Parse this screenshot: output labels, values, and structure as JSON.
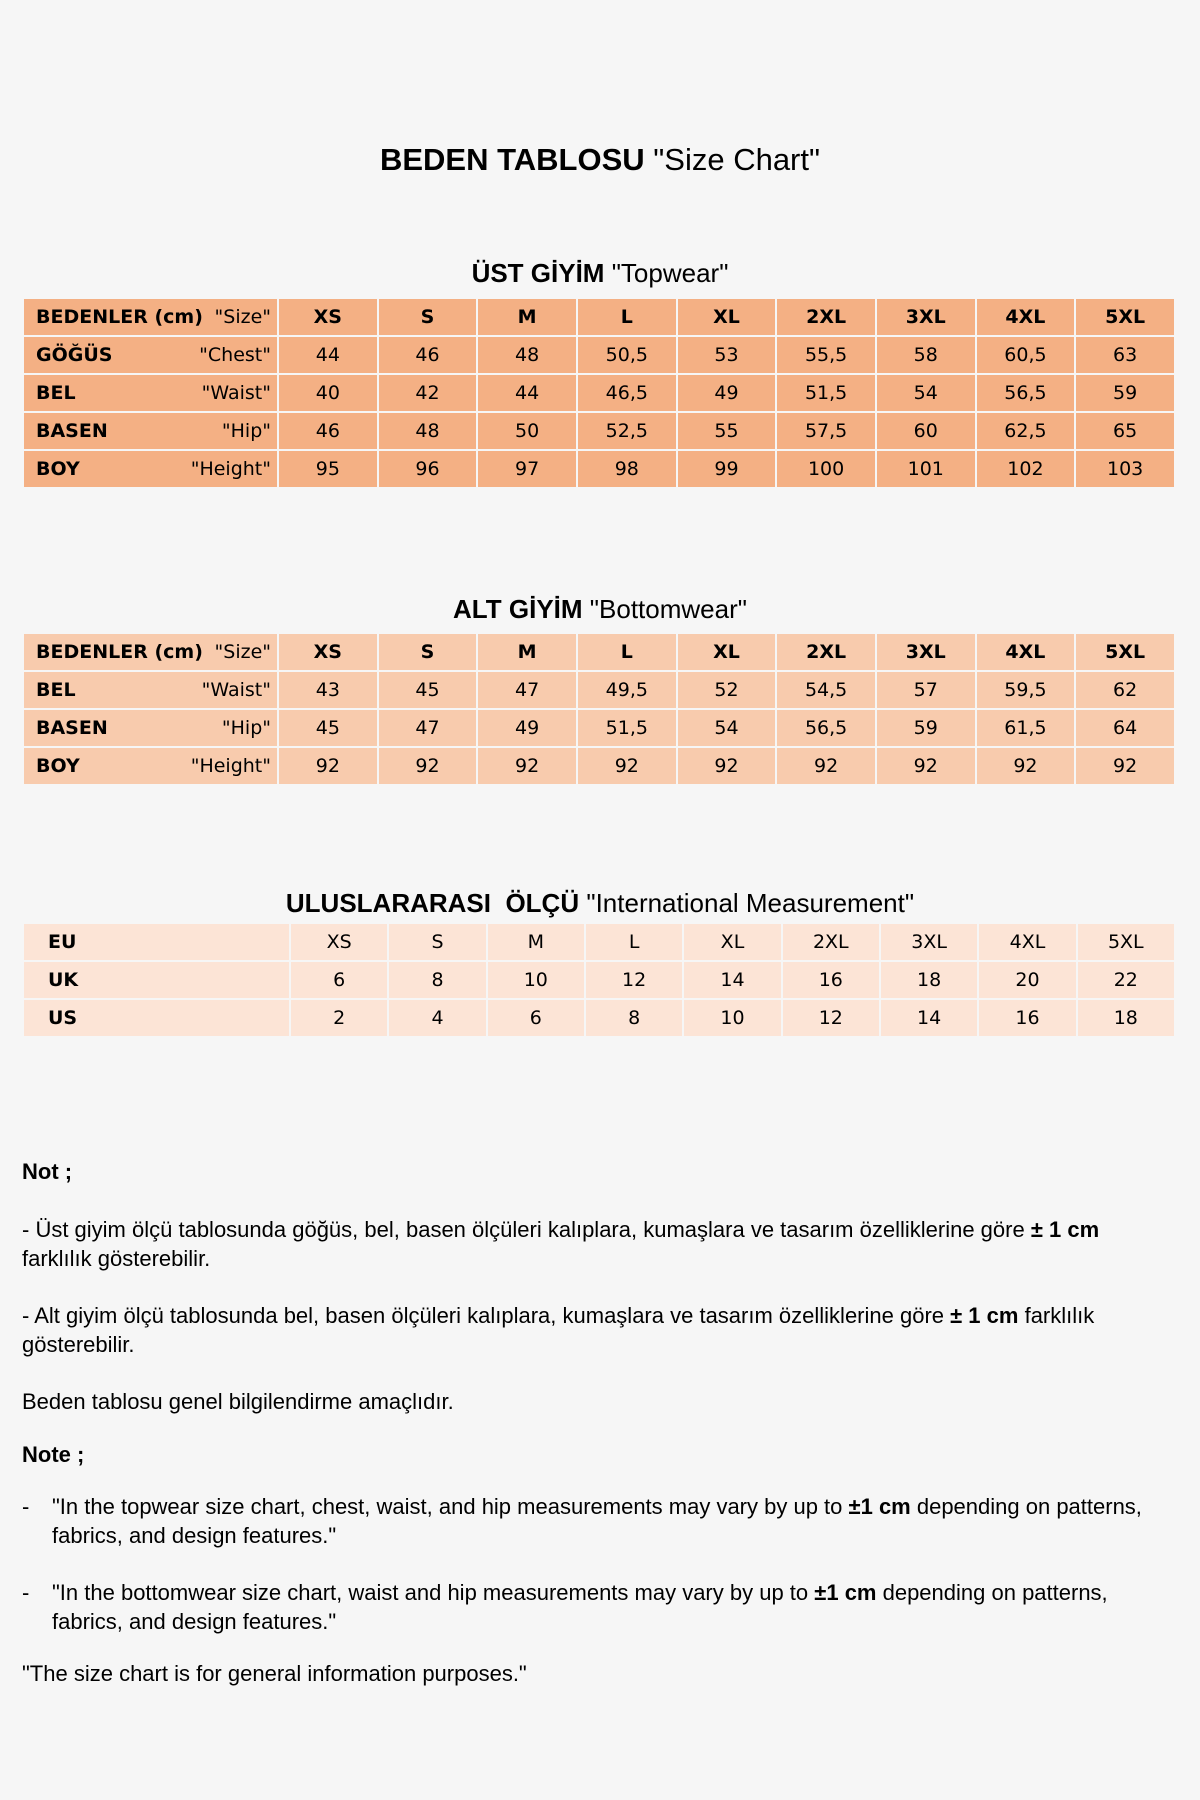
{
  "title": {
    "tr": "BEDEN TABLOSU",
    "en": "\"Size Chart\""
  },
  "topwear": {
    "heading_tr": "ÜST GİYİM",
    "heading_en": "\"Topwear\"",
    "header": {
      "label_tr": "BEDENLER (cm)",
      "label_en": "\"Size\"",
      "sizes": [
        "XS",
        "S",
        "M",
        "L",
        "XL",
        "2XL",
        "3XL",
        "4XL",
        "5XL"
      ]
    },
    "rows": [
      {
        "label_tr": "GÖĞÜS",
        "label_en": "\"Chest\"",
        "values": [
          "44",
          "46",
          "48",
          "50,5",
          "53",
          "55,5",
          "58",
          "60,5",
          "63"
        ]
      },
      {
        "label_tr": "BEL",
        "label_en": "\"Waist\"",
        "values": [
          "40",
          "42",
          "44",
          "46,5",
          "49",
          "51,5",
          "54",
          "56,5",
          "59"
        ]
      },
      {
        "label_tr": "BASEN",
        "label_en": "\"Hip\"",
        "values": [
          "46",
          "48",
          "50",
          "52,5",
          "55",
          "57,5",
          "60",
          "62,5",
          "65"
        ]
      },
      {
        "label_tr": "BOY",
        "label_en": "\"Height\"",
        "values": [
          "95",
          "96",
          "97",
          "98",
          "99",
          "100",
          "101",
          "102",
          "103"
        ]
      }
    ],
    "color": "#f4b084"
  },
  "bottomwear": {
    "heading_tr": "ALT GİYİM",
    "heading_en": "\"Bottomwear\"",
    "header": {
      "label_tr": "BEDENLER (cm)",
      "label_en": "\"Size\"",
      "sizes": [
        "XS",
        "S",
        "M",
        "L",
        "XL",
        "2XL",
        "3XL",
        "4XL",
        "5XL"
      ]
    },
    "rows": [
      {
        "label_tr": "BEL",
        "label_en": "\"Waist\"",
        "values": [
          "43",
          "45",
          "47",
          "49,5",
          "52",
          "54,5",
          "57",
          "59,5",
          "62"
        ]
      },
      {
        "label_tr": "BASEN",
        "label_en": "\"Hip\"",
        "values": [
          "45",
          "47",
          "49",
          "51,5",
          "54",
          "56,5",
          "59",
          "61,5",
          "64"
        ]
      },
      {
        "label_tr": "BOY",
        "label_en": "\"Height\"",
        "values": [
          "92",
          "92",
          "92",
          "92",
          "92",
          "92",
          "92",
          "92",
          "92"
        ]
      }
    ],
    "color": "#f8cbad"
  },
  "international": {
    "heading_tr": "ULUSLARARASI  ÖLÇÜ",
    "heading_en": "\"International Measurement\"",
    "rows": [
      {
        "label": "EU",
        "values": [
          "XS",
          "S",
          "M",
          "L",
          "XL",
          "2XL",
          "3XL",
          "4XL",
          "5XL"
        ]
      },
      {
        "label": "UK",
        "values": [
          "6",
          "8",
          "10",
          "12",
          "14",
          "16",
          "18",
          "20",
          "22"
        ]
      },
      {
        "label": "US",
        "values": [
          "2",
          "4",
          "6",
          "8",
          "10",
          "12",
          "14",
          "16",
          "18"
        ]
      }
    ],
    "color": "#fce4d6"
  },
  "notes": {
    "not_label": "Not ;",
    "tr1_a": "- Üst giyim ölçü tablosunda göğüs, bel, basen ölçüleri kalıplara, kumaşlara ve tasarım özelliklerine göre ",
    "tr1_b": "± 1 cm",
    "tr1_c": " farklılık gösterebilir.",
    "tr2_a": "- Alt giyim ölçü tablosunda bel, basen ölçüleri kalıplara, kumaşlara ve tasarım özelliklerine göre ",
    "tr2_b": "± 1 cm",
    "tr2_c": " farklılık gösterebilir.",
    "tr3": "Beden tablosu genel bilgilendirme amaçlıdır.",
    "note_label": "Note ;",
    "dash": "-",
    "en1_a": "\"In the topwear size chart, chest, waist, and hip measurements may vary by up to ",
    "en1_b": "±1 cm",
    "en1_c": " depending on patterns, fabrics, and design features.\"",
    "en2_a": "\"In the bottomwear size chart, waist and hip measurements may vary by up to ",
    "en2_b": "±1 cm",
    "en2_c": " depending on patterns, fabrics, and design features.\"",
    "en3": "\"The size chart is for general information purposes.\""
  }
}
